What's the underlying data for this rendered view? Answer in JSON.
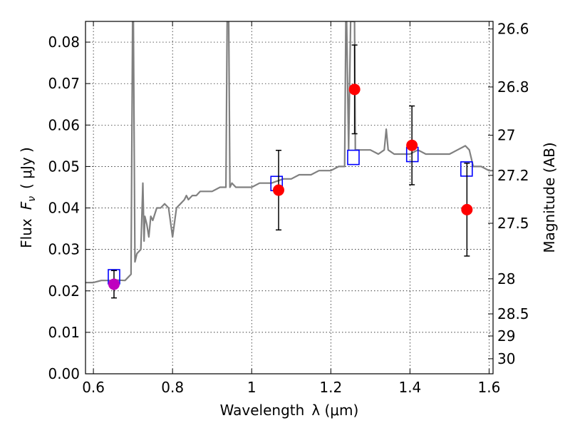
{
  "chart_data": {
    "type": "scatter",
    "xlabel_prefix": "Wavelength",
    "xlabel_math": "λ (μm)",
    "ylabel_prefix": "Flux",
    "ylabel_math": "F",
    "ylabel_sub": "ν",
    "ylabel_unit": "( μJy )",
    "y2label": "Magnitude (AB)",
    "xlim": [
      0.58,
      1.61
    ],
    "ylim": [
      0.0,
      0.085
    ],
    "grid": true,
    "x_ticks": [
      "0.6",
      "0.8",
      "1",
      "1.2",
      "1.4",
      "1.6"
    ],
    "x_tick_values": [
      0.6,
      0.8,
      1.0,
      1.2,
      1.4,
      1.6
    ],
    "y_ticks": [
      "0.00",
      "0.01",
      "0.02",
      "0.03",
      "0.04",
      "0.05",
      "0.06",
      "0.07",
      "0.08"
    ],
    "y_tick_values": [
      0.0,
      0.01,
      0.02,
      0.03,
      0.04,
      0.05,
      0.06,
      0.07,
      0.08
    ],
    "mag_ticks": [
      "26.6",
      "26.8",
      "27",
      "27.2",
      "27.5",
      "28",
      "28.5",
      "29",
      "30"
    ],
    "mag_tick_values": [
      26.6,
      26.8,
      27.0,
      27.2,
      27.5,
      28.0,
      28.5,
      29.0,
      30.0
    ],
    "colors": {
      "spectrum": "#808080",
      "observed": "#ff0000",
      "observed_first": "#bf00bf",
      "model": "#0000ff",
      "errorbar": "#000000"
    },
    "series": [
      {
        "kind": "spectrum",
        "x": [
          0.58,
          0.6,
          0.62,
          0.64,
          0.66,
          0.68,
          0.695,
          0.699,
          0.7,
          0.701,
          0.705,
          0.71,
          0.72,
          0.725,
          0.728,
          0.73,
          0.735,
          0.74,
          0.745,
          0.75,
          0.76,
          0.77,
          0.78,
          0.79,
          0.8,
          0.81,
          0.82,
          0.83,
          0.835,
          0.84,
          0.85,
          0.86,
          0.87,
          0.88,
          0.89,
          0.9,
          0.92,
          0.935,
          0.938,
          0.94,
          0.942,
          0.945,
          0.95,
          0.96,
          0.98,
          1.0,
          1.02,
          1.05,
          1.08,
          1.1,
          1.12,
          1.15,
          1.17,
          1.19,
          1.2,
          1.22,
          1.235,
          1.238,
          1.24,
          1.245,
          1.25,
          1.255,
          1.26,
          1.262,
          1.265,
          1.27,
          1.28,
          1.3,
          1.32,
          1.335,
          1.34,
          1.345,
          1.36,
          1.38,
          1.4,
          1.42,
          1.44,
          1.46,
          1.48,
          1.5,
          1.52,
          1.54,
          1.55,
          1.56,
          1.58,
          1.6,
          1.61
        ],
        "y": [
          0.022,
          0.022,
          0.0225,
          0.0225,
          0.0226,
          0.0225,
          0.024,
          0.085,
          0.085,
          0.085,
          0.027,
          0.029,
          0.03,
          0.046,
          0.032,
          0.038,
          0.036,
          0.033,
          0.038,
          0.037,
          0.04,
          0.04,
          0.041,
          0.04,
          0.033,
          0.04,
          0.041,
          0.042,
          0.043,
          0.042,
          0.043,
          0.043,
          0.044,
          0.044,
          0.044,
          0.044,
          0.045,
          0.045,
          0.085,
          0.085,
          0.085,
          0.045,
          0.046,
          0.045,
          0.045,
          0.045,
          0.046,
          0.046,
          0.047,
          0.047,
          0.048,
          0.048,
          0.049,
          0.049,
          0.049,
          0.05,
          0.05,
          0.085,
          0.085,
          0.054,
          0.085,
          0.085,
          0.085,
          0.054,
          0.054,
          0.054,
          0.054,
          0.054,
          0.053,
          0.054,
          0.059,
          0.054,
          0.053,
          0.053,
          0.053,
          0.054,
          0.053,
          0.053,
          0.053,
          0.053,
          0.054,
          0.055,
          0.054,
          0.05,
          0.05,
          0.049,
          0.049
        ]
      },
      {
        "kind": "model",
        "x": [
          0.652,
          1.063,
          1.257,
          1.406,
          1.543
        ],
        "y": [
          0.0234,
          0.0459,
          0.0522,
          0.0529,
          0.0494
        ]
      },
      {
        "kind": "observed",
        "x": [
          0.652,
          1.068,
          1.26,
          1.405,
          1.544
        ],
        "y": [
          0.0216,
          0.0443,
          0.0686,
          0.0551,
          0.0396
        ],
        "yerr": [
          0.0033,
          0.0096,
          0.0107,
          0.0095,
          0.0112
        ]
      }
    ]
  }
}
